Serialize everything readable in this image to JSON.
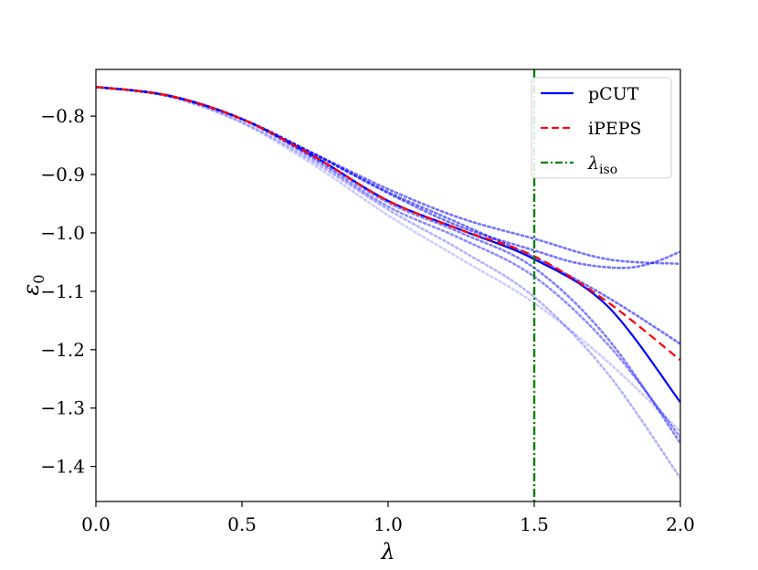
{
  "chart_data": {
    "type": "line",
    "xlabel": "λ",
    "ylabel": "ε",
    "ylabel_sub": "0",
    "xlim": [
      0.0,
      2.0
    ],
    "ylim": [
      -1.46,
      -0.72
    ],
    "xticks": [
      {
        "v": 0.0,
        "label": "0.0"
      },
      {
        "v": 0.5,
        "label": "0.5"
      },
      {
        "v": 1.0,
        "label": "1.0"
      },
      {
        "v": 1.5,
        "label": "1.5"
      },
      {
        "v": 2.0,
        "label": "2.0"
      }
    ],
    "yticks": [
      {
        "v": -0.8,
        "label": "−0.8"
      },
      {
        "v": -0.9,
        "label": "−0.9"
      },
      {
        "v": -1.0,
        "label": "−1.0"
      },
      {
        "v": -1.1,
        "label": "−1.1"
      },
      {
        "v": -1.2,
        "label": "−1.2"
      },
      {
        "v": -1.3,
        "label": "−1.3"
      },
      {
        "v": -1.4,
        "label": "−1.4"
      }
    ],
    "legend": {
      "position": "top-right",
      "entries": [
        {
          "label": "pCUT",
          "color": "#0000ff",
          "style": "solid"
        },
        {
          "label": "iPEPS",
          "color": "#ff0000",
          "style": "dashed"
        },
        {
          "label": "λ",
          "label_sub": "iso",
          "color": "#008000",
          "style": "dashdot"
        }
      ]
    },
    "series": [
      {
        "name": "pCUT",
        "color": "#0000ff",
        "style": "solid",
        "opacity": 1.0,
        "x": [
          0,
          0.25,
          0.5,
          0.75,
          1.0,
          1.25,
          1.5,
          1.75,
          2.0
        ],
        "y": [
          -0.75,
          -0.765,
          -0.805,
          -0.87,
          -0.945,
          -0.995,
          -1.045,
          -1.125,
          -1.29
        ]
      },
      {
        "name": "iPEPS",
        "color": "#ff0000",
        "style": "dashed",
        "opacity": 1.0,
        "x": [
          0,
          0.25,
          0.5,
          0.75,
          1.0,
          1.25,
          1.5,
          1.75,
          2.0
        ],
        "y": [
          -0.75,
          -0.765,
          -0.805,
          -0.87,
          -0.945,
          -0.995,
          -1.04,
          -1.118,
          -1.218
        ]
      },
      {
        "color": "#0000ff",
        "style": "dotted",
        "opacity": 0.55,
        "x": [
          0,
          0.25,
          0.5,
          0.75,
          1.0,
          1.25,
          1.5,
          1.75,
          2.0
        ],
        "y": [
          -0.75,
          -0.765,
          -0.805,
          -0.865,
          -0.925,
          -0.975,
          -1.01,
          -1.045,
          -1.053
        ]
      },
      {
        "color": "#0000ff",
        "style": "dotted",
        "opacity": 0.55,
        "x": [
          0,
          0.25,
          0.5,
          0.75,
          1.0,
          1.25,
          1.5,
          1.65,
          1.8,
          1.9,
          2.0
        ],
        "y": [
          -0.75,
          -0.765,
          -0.805,
          -0.866,
          -0.932,
          -0.99,
          -1.03,
          -1.052,
          -1.06,
          -1.052,
          -1.032
        ]
      },
      {
        "color": "#0000ff",
        "style": "dotted",
        "opacity": 0.55,
        "x": [
          0,
          0.25,
          0.5,
          0.75,
          1.0,
          1.25,
          1.5,
          1.75,
          2.0
        ],
        "y": [
          -0.75,
          -0.765,
          -0.805,
          -0.866,
          -0.93,
          -0.985,
          -1.042,
          -1.11,
          -1.19
        ]
      },
      {
        "color": "#0000ff",
        "style": "dotted",
        "opacity": 0.5,
        "x": [
          0,
          0.25,
          0.5,
          0.75,
          1.0,
          1.25,
          1.5,
          1.75,
          2.0
        ],
        "y": [
          -0.75,
          -0.765,
          -0.805,
          -0.872,
          -0.948,
          -1.0,
          -1.06,
          -1.18,
          -1.36
        ]
      },
      {
        "color": "#0000ff",
        "style": "dotted",
        "opacity": 0.45,
        "x": [
          0,
          0.25,
          0.5,
          0.75,
          1.0,
          1.25,
          1.5,
          1.75,
          2.0
        ],
        "y": [
          -0.75,
          -0.765,
          -0.805,
          -0.875,
          -0.955,
          -1.01,
          -1.075,
          -1.19,
          -1.35
        ]
      },
      {
        "color": "#0000ff",
        "style": "dotted",
        "opacity": 0.3,
        "x": [
          0,
          0.25,
          0.5,
          0.75,
          1.0,
          1.25,
          1.5,
          1.75,
          2.0
        ],
        "y": [
          -0.75,
          -0.766,
          -0.81,
          -0.88,
          -0.96,
          -1.03,
          -1.11,
          -1.24,
          -1.42
        ]
      },
      {
        "color": "#0000ff",
        "style": "dotted",
        "opacity": 0.2,
        "x": [
          0,
          0.25,
          0.5,
          0.75,
          1.0,
          1.25,
          1.5,
          1.75,
          2.0
        ],
        "y": [
          -0.75,
          -0.767,
          -0.812,
          -0.885,
          -0.97,
          -1.045,
          -1.12,
          -1.22,
          -1.34
        ]
      }
    ],
    "vline": {
      "x": 1.5,
      "color": "#008000",
      "style": "dashdot"
    }
  }
}
